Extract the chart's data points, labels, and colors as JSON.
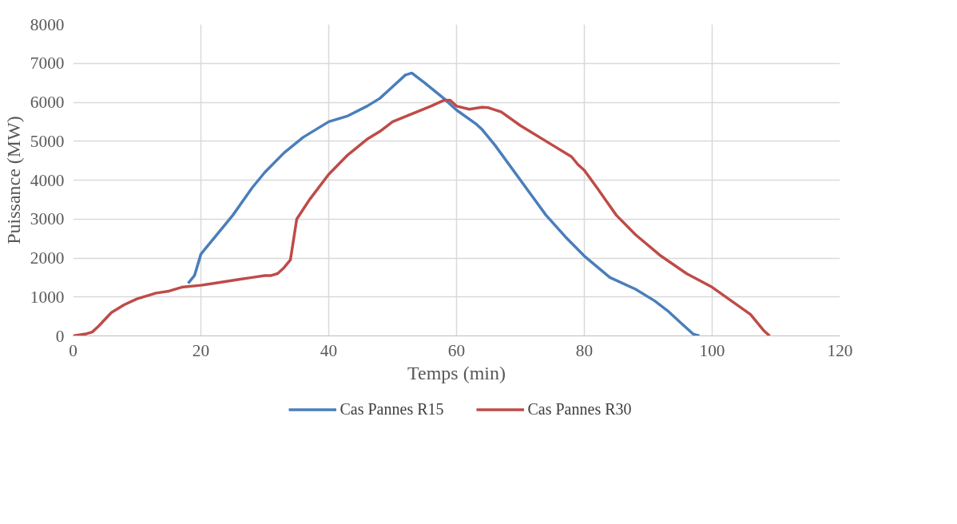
{
  "chart_data": {
    "type": "line",
    "xlabel": "Temps (min)",
    "ylabel": "Puissance (MW)",
    "xlim": [
      0,
      120
    ],
    "xticks": [
      0,
      20,
      40,
      60,
      80,
      100,
      120
    ],
    "ylim": [
      0,
      8000
    ],
    "yticks": [
      0,
      1000,
      2000,
      3000,
      4000,
      5000,
      6000,
      7000,
      8000
    ],
    "grid": true,
    "legend": "bottom",
    "marker": "none",
    "line_style": "solid",
    "series": [
      {
        "name": "Cas Pannes R15",
        "color": "#4a7ebb",
        "x": [
          18,
          19,
          20,
          22,
          25,
          28,
          30,
          33,
          36,
          40,
          43,
          46,
          48,
          50,
          52,
          53,
          55,
          58,
          60,
          63,
          64,
          66,
          70,
          74,
          77,
          80,
          84,
          88,
          91,
          93,
          95,
          97,
          98
        ],
        "values": [
          1350,
          1550,
          2100,
          2500,
          3100,
          3800,
          4200,
          4700,
          5100,
          5500,
          5650,
          5900,
          6100,
          6400,
          6700,
          6750,
          6500,
          6100,
          5800,
          5450,
          5300,
          4900,
          4000,
          3100,
          2550,
          2050,
          1500,
          1200,
          900,
          650,
          350,
          50,
          0
        ]
      },
      {
        "name": "Cas Pannes R30",
        "color": "#be4b48",
        "x": [
          0,
          2,
          3,
          4,
          6,
          8,
          10,
          13,
          15,
          17,
          20,
          22,
          24,
          26,
          28,
          30,
          31,
          32,
          33,
          34,
          35,
          37,
          40,
          43,
          46,
          48,
          50,
          53,
          56,
          58,
          59,
          60,
          62,
          64,
          65,
          67,
          70,
          75,
          78,
          79,
          80,
          82,
          85,
          88,
          92,
          96,
          100,
          103,
          106,
          108,
          109
        ],
        "values": [
          0,
          50,
          100,
          250,
          600,
          800,
          950,
          1100,
          1150,
          1250,
          1300,
          1350,
          1400,
          1450,
          1500,
          1550,
          1550,
          1600,
          1750,
          1950,
          3000,
          3500,
          4150,
          4650,
          5050,
          5250,
          5500,
          5700,
          5900,
          6050,
          6050,
          5900,
          5820,
          5870,
          5860,
          5750,
          5400,
          4900,
          4600,
          4400,
          4250,
          3800,
          3100,
          2600,
          2050,
          1600,
          1250,
          900,
          550,
          150,
          0
        ]
      }
    ]
  }
}
